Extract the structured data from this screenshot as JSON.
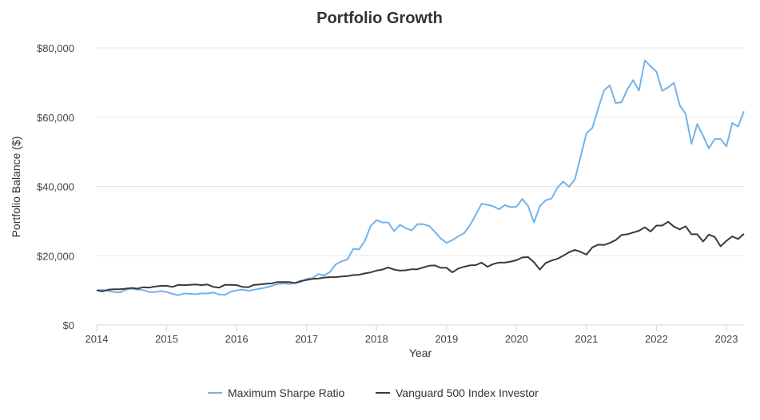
{
  "chart_data": {
    "type": "line",
    "title": "Portfolio Growth",
    "xlabel": "Year",
    "ylabel": "Portfolio Balance ($)",
    "x_start": "2014-01",
    "x_frequency": "monthly",
    "xlim": [
      2014,
      2023.35
    ],
    "ylim": [
      0,
      80000
    ],
    "x_ticks": [
      "2014",
      "2015",
      "2016",
      "2017",
      "2018",
      "2019",
      "2020",
      "2021",
      "2022",
      "2023"
    ],
    "y_ticks": [
      0,
      20000,
      40000,
      60000,
      80000
    ],
    "y_tick_labels": [
      "$0",
      "$20,000",
      "$40,000",
      "$60,000",
      "$80,000"
    ],
    "grid": true,
    "legend_position": "bottom",
    "series": [
      {
        "name": "Maximum Sharpe Ratio",
        "color": "#74b2ea",
        "values": [
          10000,
          10200,
          9800,
          9500,
          9400,
          10200,
          10500,
          10200,
          10100,
          9500,
          9500,
          9800,
          9500,
          9000,
          8600,
          9100,
          9000,
          8900,
          9100,
          9100,
          9400,
          8800,
          8700,
          9600,
          10000,
          10200,
          9900,
          10200,
          10500,
          10800,
          11300,
          11800,
          12000,
          11800,
          12200,
          12400,
          13300,
          13500,
          14700,
          14300,
          15300,
          17500,
          18400,
          18900,
          22000,
          21800,
          24300,
          28600,
          30300,
          29600,
          29600,
          27100,
          28900,
          28000,
          27300,
          29100,
          29100,
          28600,
          26900,
          25000,
          23700,
          24500,
          25600,
          26500,
          28800,
          31800,
          35000,
          34700,
          34300,
          33400,
          34600,
          34000,
          34200,
          36400,
          34300,
          29600,
          34300,
          36000,
          36500,
          39600,
          41400,
          39900,
          42000,
          48700,
          55400,
          56900,
          62500,
          67700,
          69200,
          64100,
          64300,
          68000,
          70700,
          67700,
          76400,
          74700,
          73100,
          67600,
          68600,
          69900,
          63400,
          61000,
          52300,
          58000,
          54600,
          51000,
          53700,
          53700,
          51600,
          58300,
          57300,
          61700
        ]
      },
      {
        "name": "Vanguard 500 Index Investor",
        "color": "#3a3a3a",
        "values": [
          10000,
          9700,
          10200,
          10300,
          10300,
          10500,
          10700,
          10500,
          10900,
          10800,
          11100,
          11300,
          11300,
          11000,
          11600,
          11500,
          11600,
          11700,
          11500,
          11700,
          11000,
          10800,
          11600,
          11600,
          11500,
          11000,
          10900,
          11600,
          11700,
          11900,
          12000,
          12400,
          12400,
          12400,
          12100,
          12700,
          13000,
          13300,
          13400,
          13700,
          13800,
          13800,
          14000,
          14100,
          14400,
          14500,
          14900,
          15200,
          15700,
          16000,
          16600,
          16000,
          15700,
          15800,
          16100,
          16100,
          16600,
          17100,
          17200,
          16500,
          16500,
          15200,
          16300,
          16800,
          17200,
          17300,
          18000,
          16800,
          17600,
          18000,
          18000,
          18300,
          18700,
          19500,
          19600,
          18100,
          16000,
          17900,
          18600,
          19100,
          20000,
          21000,
          21700,
          21100,
          20300,
          22400,
          23200,
          23100,
          23700,
          24500,
          26000,
          26200,
          26700,
          27200,
          28200,
          27000,
          28700,
          28700,
          29800,
          28400,
          27600,
          28500,
          26200,
          26200,
          24100,
          26100,
          25400,
          22700,
          24300,
          25600,
          24800,
          26300
        ]
      }
    ]
  }
}
